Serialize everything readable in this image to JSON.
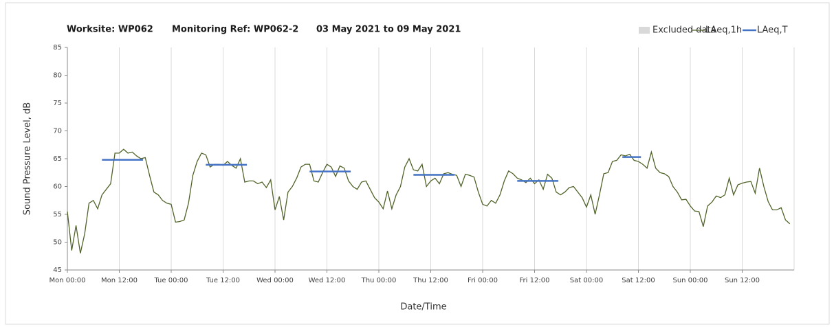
{
  "chart_data": {
    "type": "line",
    "title": [
      "Worksite: WP062",
      "Monitoring Ref: WP062-2",
      "03 May 2021 to 09 May 2021"
    ],
    "x_label": "Date/Time",
    "y_label": "Sound Pressure Level, dB",
    "xlim": [
      0,
      168
    ],
    "ylim": [
      45,
      85
    ],
    "yticks": [
      45,
      50,
      55,
      60,
      65,
      70,
      75,
      80,
      85
    ],
    "xticks": [
      {
        "value": 0,
        "label": "Mon 00:00"
      },
      {
        "value": 12,
        "label": "Mon 12:00"
      },
      {
        "value": 24,
        "label": "Tue 00:00"
      },
      {
        "value": 36,
        "label": "Tue 12:00"
      },
      {
        "value": 48,
        "label": "Wed 00:00"
      },
      {
        "value": 60,
        "label": "Wed 12:00"
      },
      {
        "value": 72,
        "label": "Thu 00:00"
      },
      {
        "value": 84,
        "label": "Thu 12:00"
      },
      {
        "value": 96,
        "label": "Fri 00:00"
      },
      {
        "value": 108,
        "label": "Fri 12:00"
      },
      {
        "value": 120,
        "label": "Sat 00:00"
      },
      {
        "value": 132,
        "label": "Sat 12:00"
      },
      {
        "value": 144,
        "label": "Sun 00:00"
      },
      {
        "value": 156,
        "label": "Sun 12:00"
      }
    ],
    "grid": "x",
    "series": [
      {
        "name": "Excluded data",
        "kind": "area",
        "color": "#d9d9d9",
        "x": [],
        "values": []
      },
      {
        "name": "LAeq,1h",
        "kind": "line",
        "color": "#4f6228",
        "x": [
          0,
          1,
          2,
          3,
          4,
          5,
          6,
          7,
          8,
          9,
          10,
          11,
          12,
          13,
          14,
          15,
          16,
          17,
          18,
          19,
          20,
          21,
          22,
          23,
          24,
          25,
          26,
          27,
          28,
          29,
          30,
          31,
          32,
          33,
          34,
          35,
          36,
          37,
          38,
          39,
          40,
          41,
          42,
          43,
          44,
          45,
          46,
          47,
          48,
          49,
          50,
          51,
          52,
          53,
          54,
          55,
          56,
          57,
          58,
          59,
          60,
          61,
          62,
          63,
          64,
          65,
          66,
          67,
          68,
          69,
          70,
          71,
          72,
          73,
          74,
          75,
          76,
          77,
          78,
          79,
          80,
          81,
          82,
          83,
          84,
          85,
          86,
          87,
          88,
          89,
          90,
          91,
          92,
          93,
          94,
          95,
          96,
          97,
          98,
          99,
          100,
          101,
          102,
          103,
          104,
          105,
          106,
          107,
          108,
          109,
          110,
          111,
          112,
          113,
          114,
          115,
          116,
          117,
          118,
          119,
          120,
          121,
          122,
          123,
          124,
          125,
          126,
          127,
          128,
          129,
          130,
          131,
          132,
          133,
          134,
          135,
          136,
          137,
          138,
          139,
          140,
          141,
          142,
          143,
          144,
          145,
          146,
          147,
          148,
          149,
          150,
          151,
          152,
          153,
          154,
          155,
          156,
          157,
          158,
          159,
          160,
          161,
          162,
          163,
          164,
          165,
          166,
          167
        ],
        "values": [
          55.5,
          48.5,
          53,
          48,
          51.5,
          57,
          57.5,
          56,
          58.5,
          59.5,
          60.5,
          66,
          66,
          66.7,
          66,
          66.2,
          65.5,
          65,
          65.2,
          62,
          59,
          58.5,
          57.5,
          57,
          56.8,
          53.6,
          53.7,
          54,
          57,
          62,
          64.5,
          66,
          65.7,
          63.5,
          64,
          64,
          63.8,
          64.5,
          63.8,
          63.3,
          65,
          60.8,
          61,
          61,
          60.5,
          60.8,
          59.8,
          61.2,
          55.8,
          58.2,
          54,
          59,
          60,
          61.5,
          63.5,
          64,
          64,
          61,
          60.8,
          62.5,
          64,
          63.5,
          61.8,
          63.7,
          63.3,
          61,
          60,
          59.5,
          60.8,
          61,
          59.5,
          58,
          57.2,
          56,
          59.2,
          56,
          58.5,
          60,
          63.5,
          65,
          63,
          62.8,
          64,
          60,
          61,
          61.5,
          60.5,
          62.3,
          62.5,
          62.2,
          62,
          60,
          62.2,
          62,
          61.7,
          59,
          56.8,
          56.5,
          57.5,
          57,
          58.5,
          61,
          62.8,
          62.3,
          61.5,
          61.2,
          60.7,
          61.5,
          60.5,
          61.2,
          59.5,
          62.2,
          61.5,
          59,
          58.5,
          59,
          59.8,
          60,
          59,
          58,
          56.3,
          58.5,
          55,
          58.5,
          62.3,
          62.5,
          64.5,
          64.7,
          65.7,
          65.5,
          65.8,
          64.7,
          64.5,
          64,
          63.3,
          66.2,
          63.3,
          62.5,
          62.3,
          61.8,
          60,
          59,
          57.6,
          57.7,
          56.5,
          55.6,
          55.5,
          52.8,
          56.5,
          57.2,
          58.3,
          58,
          58.5,
          61.5,
          58.5,
          60.3,
          60.6,
          60.8,
          60.9,
          58.8,
          63.3,
          60,
          57.3,
          55.8,
          55.8,
          56.2,
          54,
          53.3
        ]
      },
      {
        "name": "LAeq,T",
        "kind": "line",
        "color": "#4472c4",
        "x": [
          8,
          17.5,
          null,
          32,
          41.5,
          null,
          56,
          65.5,
          null,
          80,
          89.5,
          null,
          104,
          113.5,
          null,
          128.3,
          132.6
        ],
        "values": [
          64.8,
          64.8,
          null,
          63.9,
          63.9,
          null,
          62.7,
          62.7,
          null,
          62.1,
          62.1,
          null,
          61,
          61,
          null,
          65.3,
          65.3
        ]
      }
    ]
  }
}
